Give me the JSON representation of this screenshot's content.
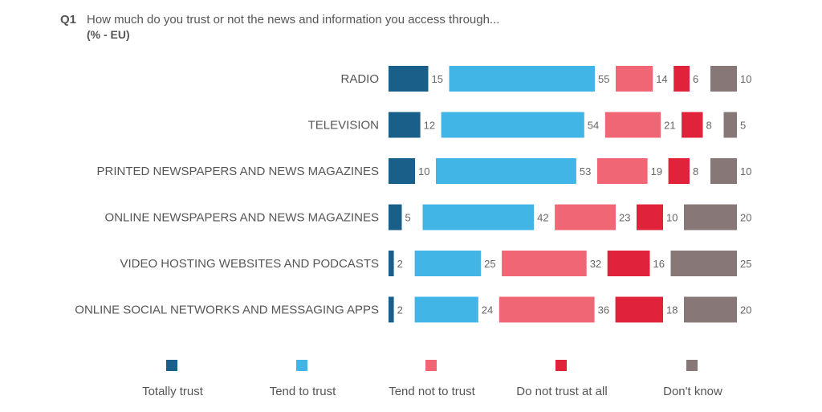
{
  "chart_data": {
    "type": "bar",
    "stacked": true,
    "orientation": "horizontal",
    "question_number": "Q1",
    "title": "How much do you trust or not the news and information you access through...",
    "subtitle": "(% - EU)",
    "categories": [
      "RADIO",
      "TELEVISION",
      "PRINTED NEWSPAPERS AND NEWS MAGAZINES",
      "ONLINE NEWSPAPERS AND NEWS MAGAZINES",
      "VIDEO HOSTING WEBSITES AND PODCASTS",
      "ONLINE SOCIAL NETWORKS AND MESSAGING APPS"
    ],
    "series": [
      {
        "name": "Totally trust",
        "color": "#1a5e8a",
        "values": [
          15,
          12,
          10,
          5,
          2,
          2
        ]
      },
      {
        "name": "Tend to trust",
        "color": "#41b6e6",
        "values": [
          55,
          54,
          53,
          42,
          25,
          24
        ]
      },
      {
        "name": "Tend not to trust",
        "color": "#f06674",
        "values": [
          14,
          21,
          19,
          23,
          32,
          36
        ]
      },
      {
        "name": "Do not trust at all",
        "color": "#e0233a",
        "values": [
          6,
          8,
          8,
          10,
          16,
          18
        ]
      },
      {
        "name": "Don't know",
        "color": "#887777",
        "values": [
          10,
          5,
          10,
          20,
          25,
          20
        ]
      }
    ],
    "legend_position": "bottom",
    "xlabel": "",
    "ylabel": ""
  }
}
